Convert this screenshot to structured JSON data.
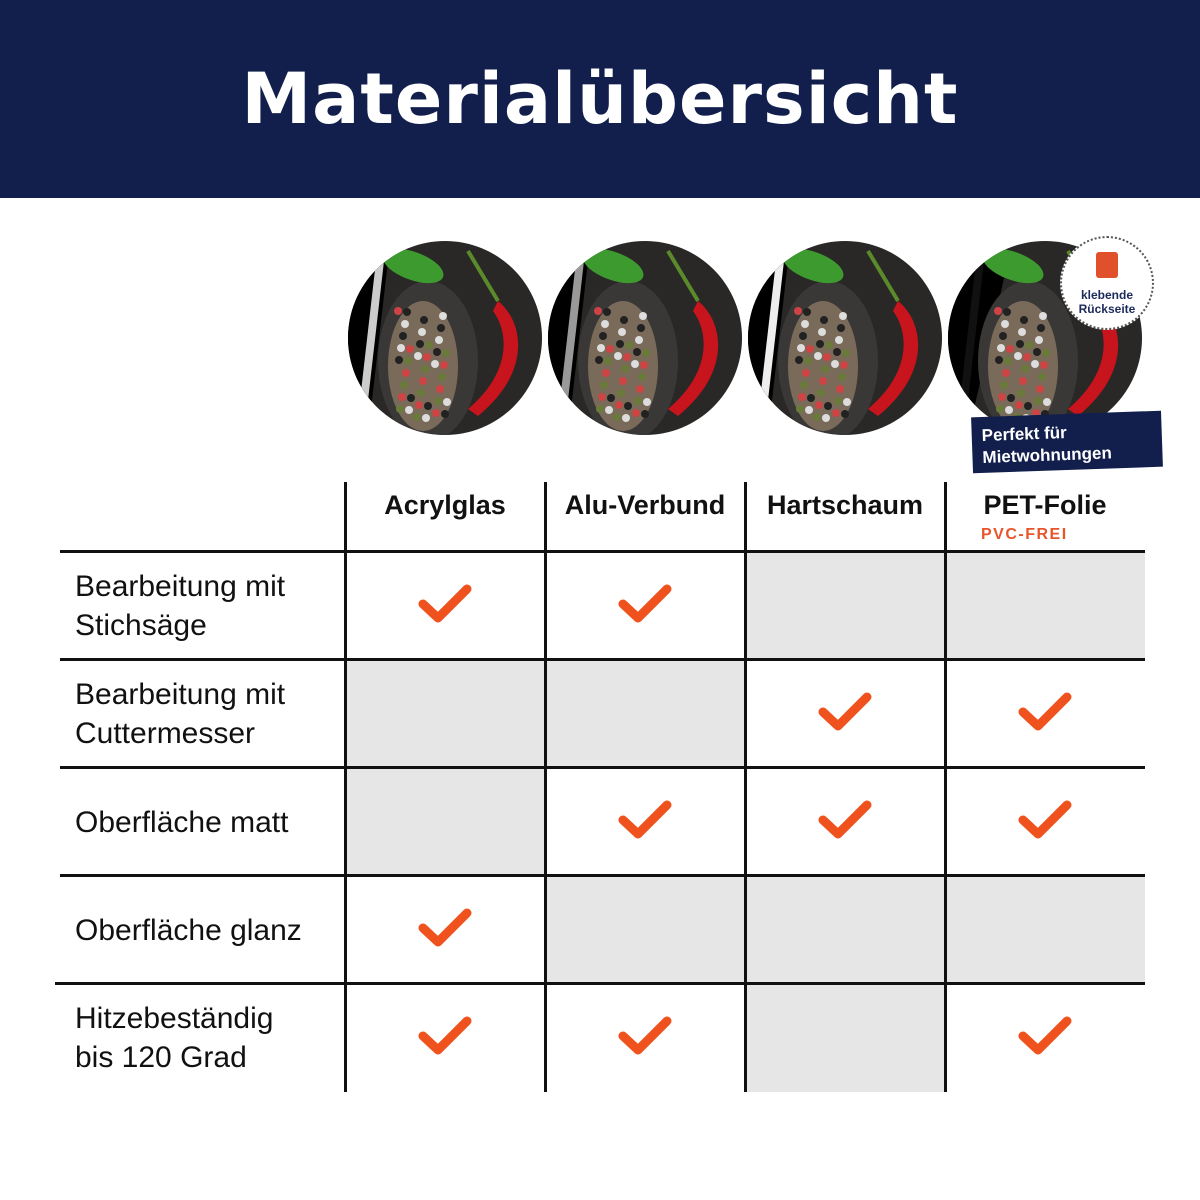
{
  "header": {
    "title": "Materialübersicht"
  },
  "colors": {
    "navy": "#121f4d",
    "accent": "#e8552a",
    "gray_cell": "#e6e6e6"
  },
  "badge": {
    "label_line1": "klebende",
    "label_line2": "Rückseite",
    "icon": "adhesive-backing-icon"
  },
  "ribbon": {
    "line1": "Perfekt für",
    "line2": "Mietwohnungen"
  },
  "columns": [
    {
      "label": "Acrylglas"
    },
    {
      "label": "Alu-Verbund"
    },
    {
      "label": "Hartschaum"
    },
    {
      "label": "PET-Folie",
      "sublabel": "PVC-FREI"
    }
  ],
  "rows": [
    {
      "label_line1": "Bearbeitung mit",
      "label_line2": "Stichsäge",
      "values": [
        true,
        true,
        false,
        false
      ]
    },
    {
      "label_line1": "Bearbeitung mit",
      "label_line2": "Cuttermesser",
      "values": [
        false,
        false,
        true,
        true
      ]
    },
    {
      "label_line1": "Oberfläche matt",
      "label_line2": "",
      "values": [
        false,
        true,
        true,
        true
      ]
    },
    {
      "label_line1": "Oberfläche glanz",
      "label_line2": "",
      "values": [
        true,
        false,
        false,
        false
      ]
    },
    {
      "label_line1": "Hitzebeständig",
      "label_line2": "bis 120 Grad",
      "values": [
        true,
        true,
        false,
        true
      ]
    }
  ]
}
